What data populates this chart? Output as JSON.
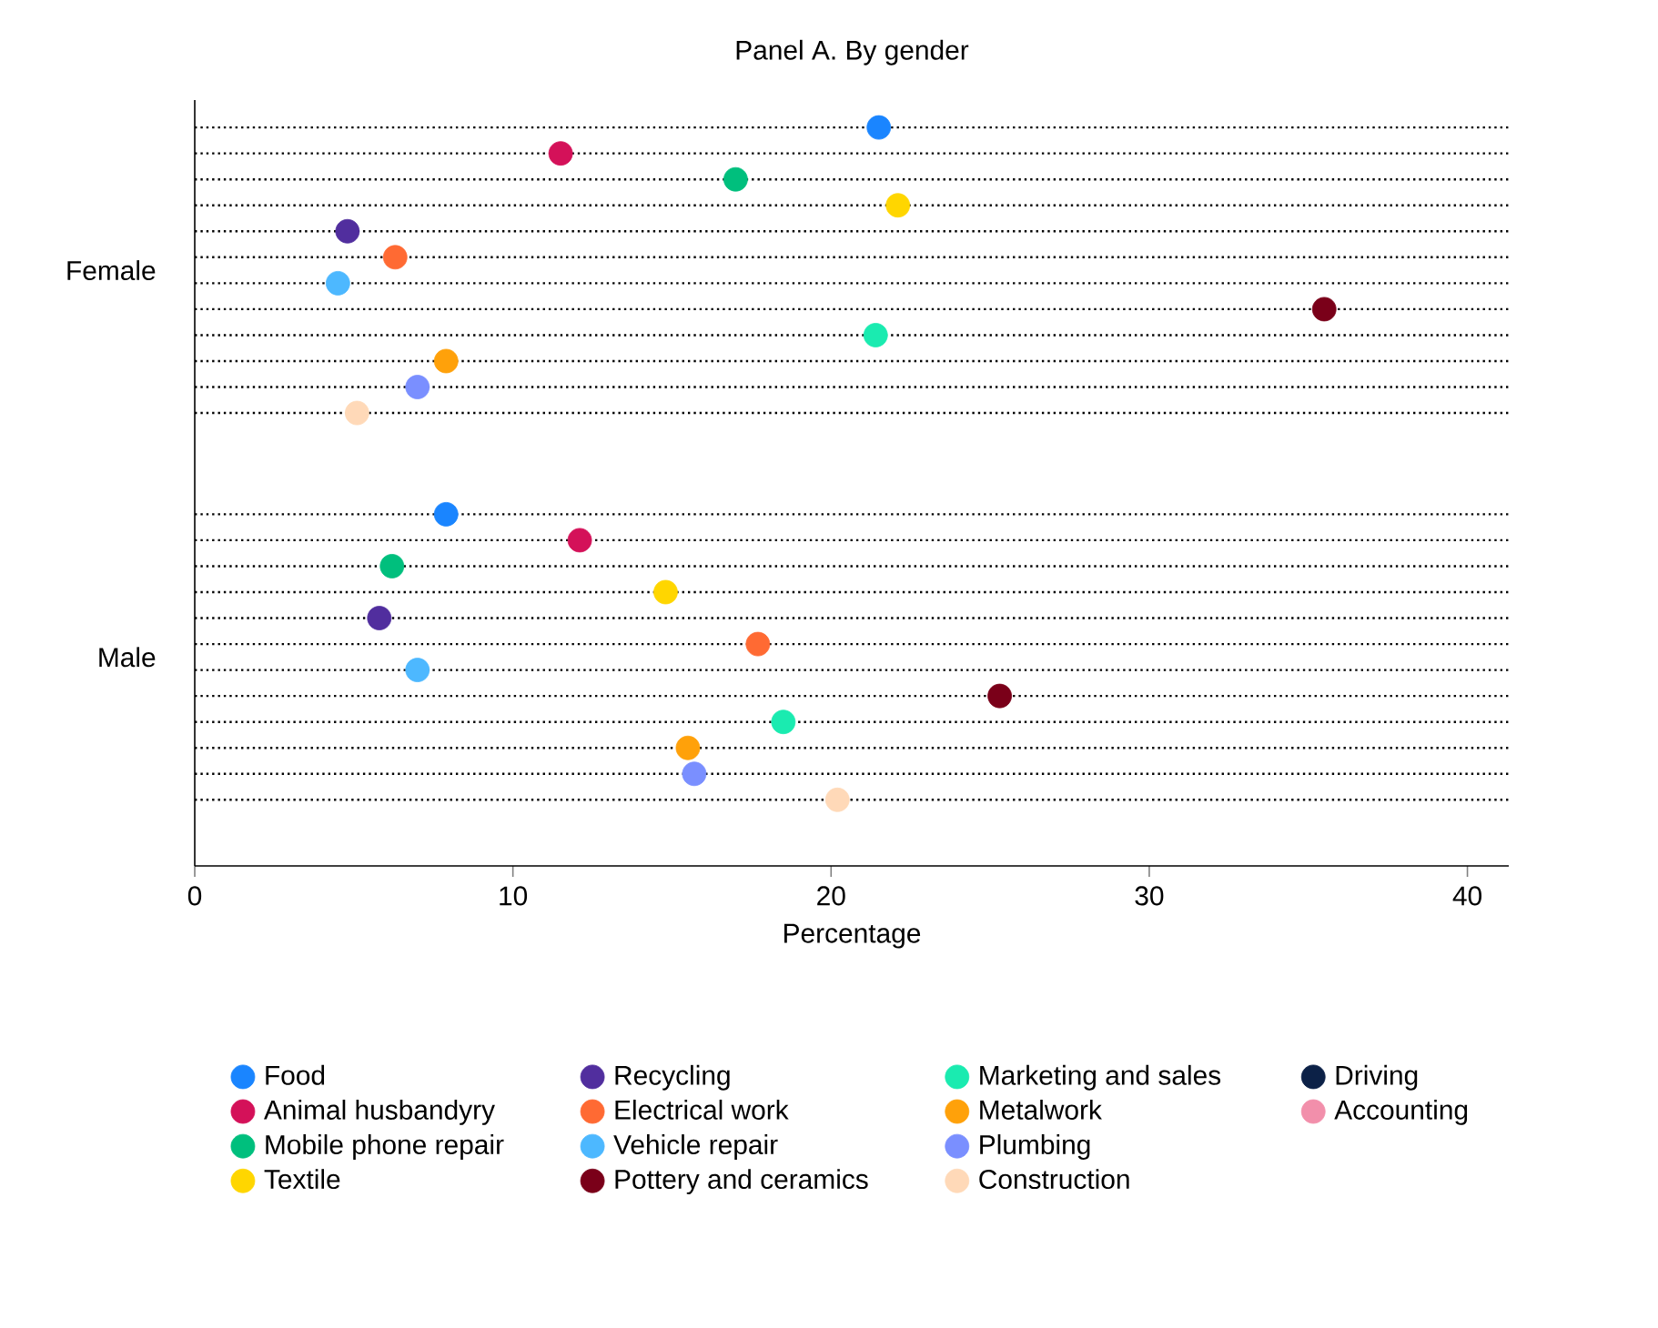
{
  "chart_data": {
    "type": "scatter",
    "orientation": "horizontal",
    "title": "Panel A. By gender",
    "xlabel": "Percentage",
    "categories": [
      "Female",
      "Male"
    ],
    "xlim": [
      0,
      41.3
    ],
    "xticks": [
      0,
      10,
      20,
      30,
      40
    ],
    "legend": "bottom",
    "marker": "circle",
    "grid": false,
    "series": [
      {
        "name": "Food",
        "color": "#1a85ff",
        "values": [
          21.5,
          7.9
        ]
      },
      {
        "name": "Animal husbandyry",
        "color": "#d41159",
        "values": [
          11.5,
          12.1
        ]
      },
      {
        "name": "Mobile phone repair",
        "color": "#00bf7d",
        "values": [
          17.0,
          6.2
        ]
      },
      {
        "name": "Textile",
        "color": "#ffd600",
        "values": [
          22.1,
          14.8
        ]
      },
      {
        "name": "Recycling",
        "color": "#512e9e",
        "values": [
          4.8,
          5.8
        ]
      },
      {
        "name": "Electrical work",
        "color": "#ff6a33",
        "values": [
          6.3,
          17.7
        ]
      },
      {
        "name": "Vehicle repair",
        "color": "#4db8ff",
        "values": [
          4.5,
          7.0
        ]
      },
      {
        "name": "Pottery and ceramics",
        "color": "#7a0019",
        "values": [
          35.5,
          25.3
        ]
      },
      {
        "name": "Marketing and sales",
        "color": "#1aebb0",
        "values": [
          21.4,
          18.5
        ]
      },
      {
        "name": "Metalwork",
        "color": "#ffa10a",
        "values": [
          7.9,
          15.5
        ]
      },
      {
        "name": "Plumbing",
        "color": "#7a8fff",
        "values": [
          7.0,
          15.7
        ]
      },
      {
        "name": "Construction",
        "color": "#ffd9b8",
        "values": [
          5.1,
          20.2
        ]
      },
      {
        "name": "Driving",
        "color": "#0c2147",
        "values": [
          null,
          null
        ]
      },
      {
        "name": "Accounting",
        "color": "#f28fab",
        "values": [
          null,
          null
        ]
      }
    ]
  }
}
